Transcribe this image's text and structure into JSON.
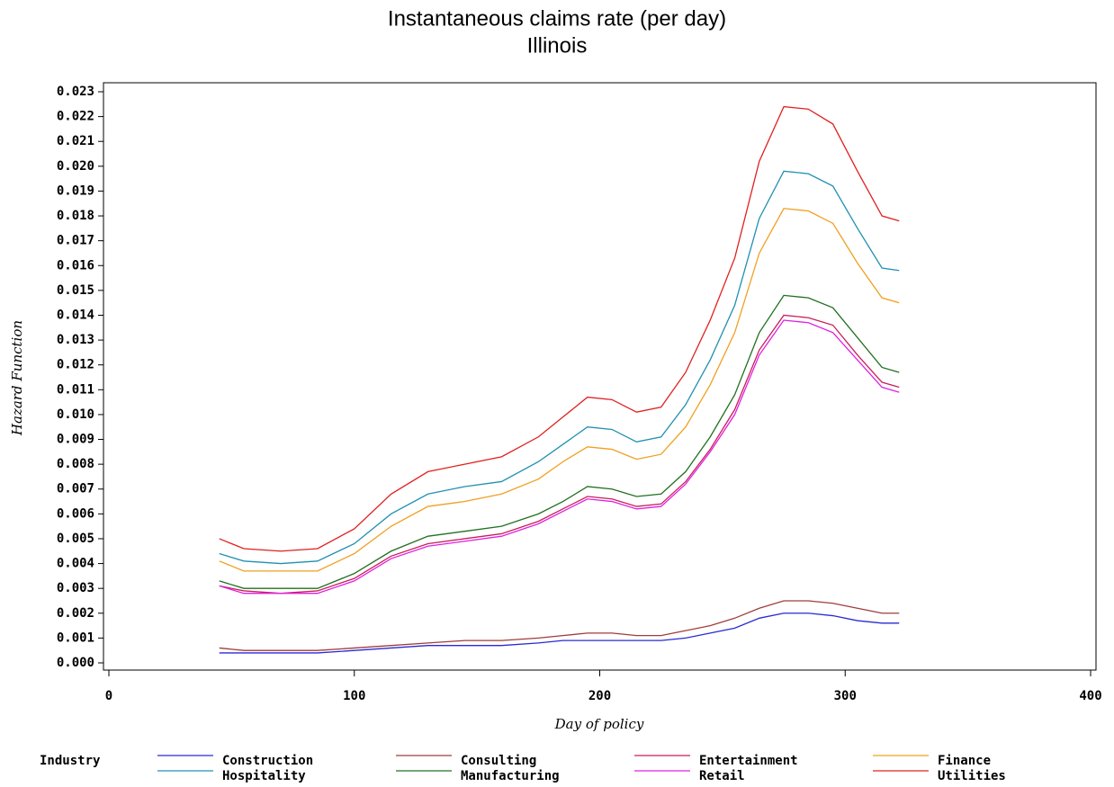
{
  "chart_data": {
    "type": "line",
    "title": "Instantaneous claims rate (per day)",
    "subtitle": "Illinois",
    "x_label": "Day of policy",
    "y_label": "Hazard Function",
    "legend_title": "Industry",
    "legend_position": "bottom",
    "x": [
      45,
      55,
      70,
      85,
      100,
      115,
      130,
      145,
      160,
      175,
      185,
      195,
      205,
      215,
      225,
      235,
      245,
      255,
      265,
      275,
      285,
      295,
      305,
      315,
      322
    ],
    "xlim": [
      0,
      400
    ],
    "xticks": [
      0,
      100,
      200,
      300,
      400
    ],
    "ylim": [
      0,
      0.023
    ],
    "yticks": [
      {
        "value": 0,
        "label": "0.000"
      },
      {
        "value": 0.001,
        "label": "0.001"
      },
      {
        "value": 0.002,
        "label": "0.002"
      },
      {
        "value": 0.003,
        "label": "0.003"
      },
      {
        "value": 0.004,
        "label": "0.004"
      },
      {
        "value": 0.005,
        "label": "0.005"
      },
      {
        "value": 0.006,
        "label": "0.006"
      },
      {
        "value": 0.007,
        "label": "0.007"
      },
      {
        "value": 0.008,
        "label": "0.008"
      },
      {
        "value": 0.009,
        "label": "0.009"
      },
      {
        "value": 0.01,
        "label": "0.010"
      },
      {
        "value": 0.011,
        "label": "0.011"
      },
      {
        "value": 0.012,
        "label": "0.012"
      },
      {
        "value": 0.013,
        "label": "0.013"
      },
      {
        "value": 0.014,
        "label": "0.014"
      },
      {
        "value": 0.015,
        "label": "0.015"
      },
      {
        "value": 0.016,
        "label": "0.016"
      },
      {
        "value": 0.017,
        "label": "0.017"
      },
      {
        "value": 0.018,
        "label": "0.018"
      },
      {
        "value": 0.019,
        "label": "0.019"
      },
      {
        "value": 0.02,
        "label": "0.020"
      },
      {
        "value": 0.021,
        "label": "0.021"
      },
      {
        "value": 0.022,
        "label": "0.022"
      },
      {
        "value": 0.023,
        "label": "0.023"
      }
    ],
    "series": [
      {
        "name": "Construction",
        "color": "#2a2ad4",
        "values": [
          0.0004,
          0.0004,
          0.0004,
          0.0004,
          0.0005,
          0.0006,
          0.0007,
          0.0007,
          0.0007,
          0.0008,
          0.0009,
          0.0009,
          0.0009,
          0.0009,
          0.0009,
          0.001,
          0.0012,
          0.0014,
          0.0018,
          0.002,
          0.002,
          0.0019,
          0.0017,
          0.0016,
          0.0016
        ]
      },
      {
        "name": "Consulting",
        "color": "#a03c3c",
        "values": [
          0.0006,
          0.0005,
          0.0005,
          0.0005,
          0.0006,
          0.0007,
          0.0008,
          0.0009,
          0.0009,
          0.001,
          0.0011,
          0.0012,
          0.0012,
          0.0011,
          0.0011,
          0.0013,
          0.0015,
          0.0018,
          0.0022,
          0.0025,
          0.0025,
          0.0024,
          0.0022,
          0.002,
          0.002
        ]
      },
      {
        "name": "Entertainment",
        "color": "#c81e5a",
        "values": [
          0.0031,
          0.0029,
          0.0028,
          0.0029,
          0.0034,
          0.0043,
          0.0048,
          0.005,
          0.0052,
          0.0057,
          0.0062,
          0.0067,
          0.0066,
          0.0063,
          0.0064,
          0.0073,
          0.0086,
          0.0102,
          0.0126,
          0.014,
          0.0139,
          0.0136,
          0.0124,
          0.0113,
          0.0111
        ]
      },
      {
        "name": "Finance",
        "color": "#f0a020",
        "values": [
          0.0041,
          0.0037,
          0.0037,
          0.0037,
          0.0044,
          0.0055,
          0.0063,
          0.0065,
          0.0068,
          0.0074,
          0.0081,
          0.0087,
          0.0086,
          0.0082,
          0.0084,
          0.0095,
          0.0112,
          0.0133,
          0.0165,
          0.0183,
          0.0182,
          0.0177,
          0.0161,
          0.0147,
          0.0145
        ]
      },
      {
        "name": "Hospitality",
        "color": "#2090b0",
        "values": [
          0.0044,
          0.0041,
          0.004,
          0.0041,
          0.0048,
          0.006,
          0.0068,
          0.0071,
          0.0073,
          0.0081,
          0.0088,
          0.0095,
          0.0094,
          0.0089,
          0.0091,
          0.0104,
          0.0122,
          0.0144,
          0.0179,
          0.0198,
          0.0197,
          0.0192,
          0.0175,
          0.0159,
          0.0158
        ]
      },
      {
        "name": "Manufacturing",
        "color": "#207020",
        "values": [
          0.0033,
          0.003,
          0.003,
          0.003,
          0.0036,
          0.0045,
          0.0051,
          0.0053,
          0.0055,
          0.006,
          0.0065,
          0.0071,
          0.007,
          0.0067,
          0.0068,
          0.0077,
          0.0091,
          0.0108,
          0.0133,
          0.0148,
          0.0147,
          0.0143,
          0.0131,
          0.0119,
          0.0117
        ]
      },
      {
        "name": "Retail",
        "color": "#e020e0",
        "values": [
          0.0031,
          0.0028,
          0.0028,
          0.0028,
          0.0033,
          0.0042,
          0.0047,
          0.0049,
          0.0051,
          0.0056,
          0.0061,
          0.0066,
          0.0065,
          0.0062,
          0.0063,
          0.0072,
          0.0085,
          0.01,
          0.0124,
          0.0138,
          0.0137,
          0.0133,
          0.0122,
          0.0111,
          0.0109
        ]
      },
      {
        "name": "Utilities",
        "color": "#e02020",
        "values": [
          0.005,
          0.0046,
          0.0045,
          0.0046,
          0.0054,
          0.0068,
          0.0077,
          0.008,
          0.0083,
          0.0091,
          0.0099,
          0.0107,
          0.0106,
          0.0101,
          0.0103,
          0.0117,
          0.0138,
          0.0163,
          0.0202,
          0.0224,
          0.0223,
          0.0217,
          0.0198,
          0.018,
          0.0178
        ]
      }
    ]
  }
}
